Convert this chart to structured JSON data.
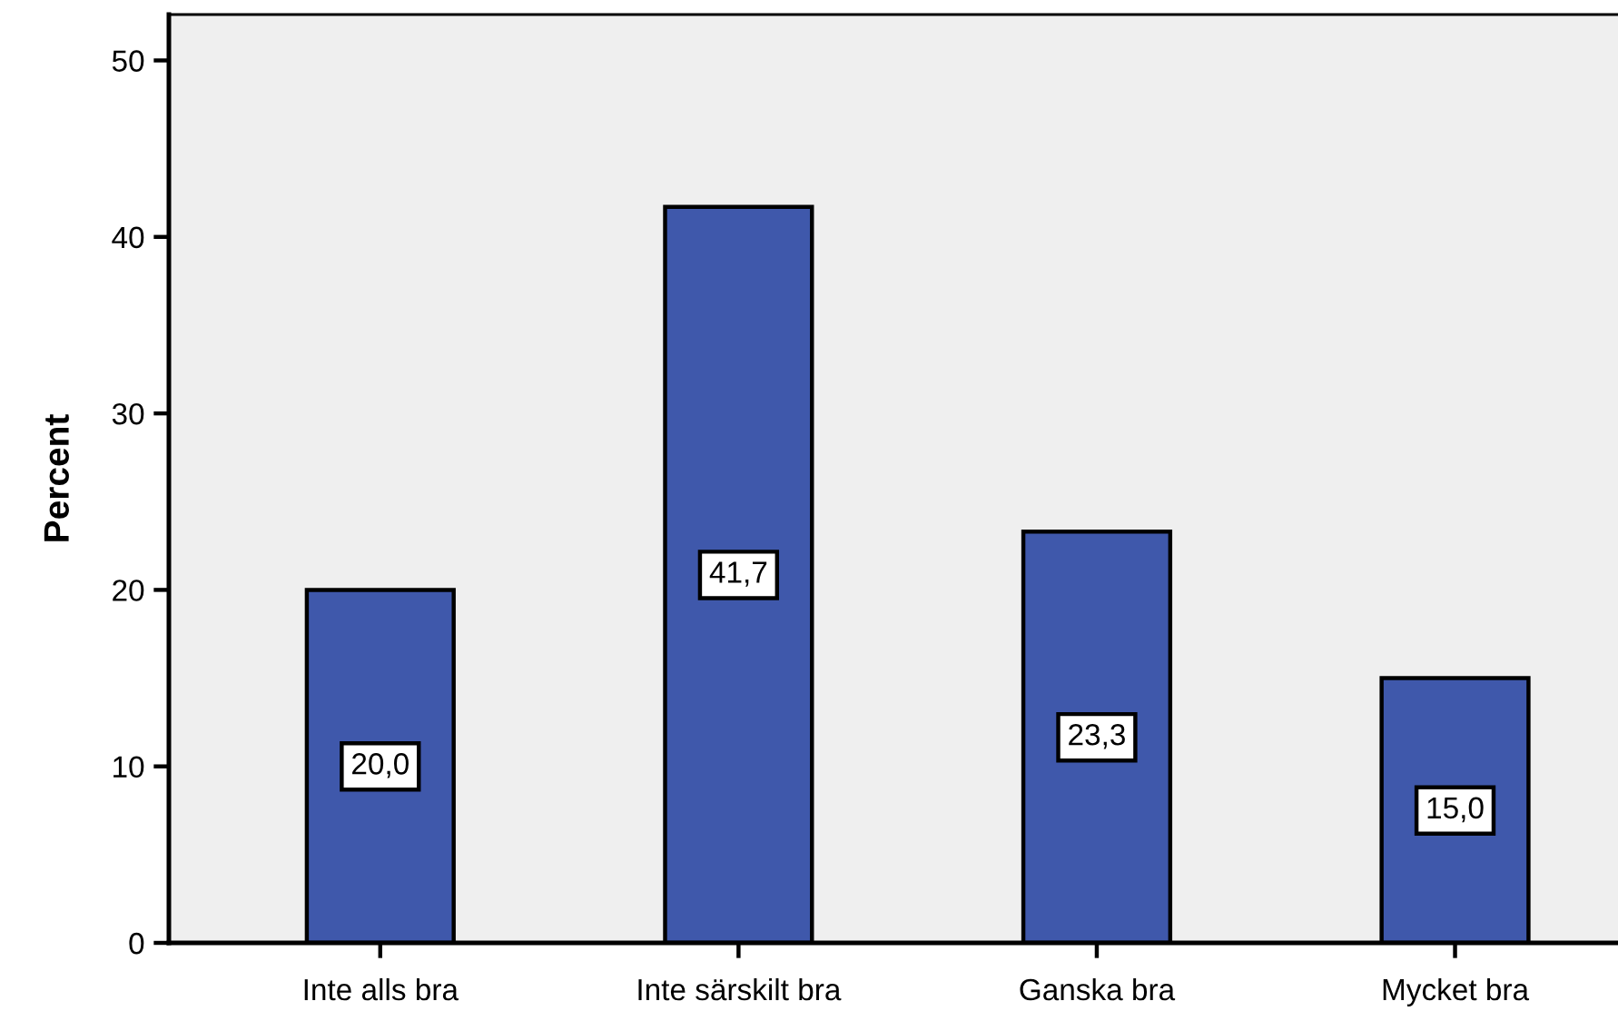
{
  "chart_data": {
    "type": "bar",
    "ylabel": "Percent",
    "categories": [
      "Inte alls bra",
      "Inte särskilt bra",
      "Ganska bra",
      "Mycket bra"
    ],
    "values": [
      20.0,
      41.7,
      23.3,
      15.0
    ],
    "value_labels": [
      "20,0",
      "41,7",
      "23,3",
      "15,0"
    ],
    "color": "#3f58ab",
    "ylim": [
      0,
      52.6
    ],
    "yticks": [
      0,
      10,
      20,
      30,
      40,
      50
    ],
    "grid": false,
    "legend": false
  }
}
